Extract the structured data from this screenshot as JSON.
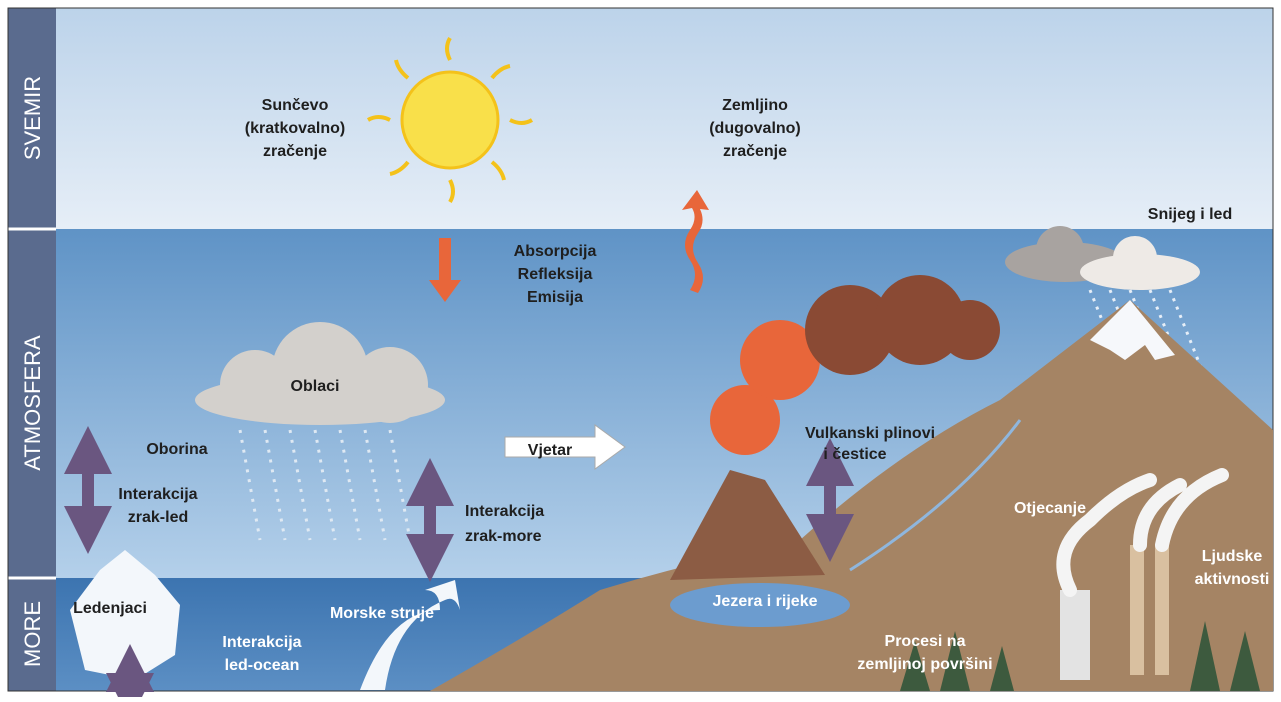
{
  "bands": [
    "SVEMIR",
    "ATMOSFERA",
    "MORE"
  ],
  "labels": {
    "solar": [
      "Sunčevo",
      "(kratkovalno)",
      "zračenje"
    ],
    "terrestrial": [
      "Zemljino",
      "(dugovalno)",
      "zračenje"
    ],
    "snow": [
      "Snijeg i led"
    ],
    "processes": [
      "Absorpcija",
      "Refleksija",
      "Emisija"
    ],
    "clouds": [
      "Oblaci"
    ],
    "precipitation": [
      "Oborina"
    ],
    "wind": [
      "Vjetar"
    ],
    "volcanic": [
      "Vulkanski plinovi",
      "i čestice"
    ],
    "air_ice": [
      "Interakcija",
      "zrak-led"
    ],
    "air_sea": [
      "Interakcija",
      "zrak-more"
    ],
    "runoff": [
      "Otjecanje"
    ],
    "human": [
      "Ljudske",
      "aktivnosti"
    ],
    "glaciers": [
      "Ledenjaci"
    ],
    "currents": [
      "Morske struje"
    ],
    "lakes": [
      "Jezera i rijeke"
    ],
    "ice_ocean": [
      "Interakcija",
      "led-ocean"
    ],
    "land": [
      "Procesi na",
      "zemljinoj površini"
    ]
  }
}
